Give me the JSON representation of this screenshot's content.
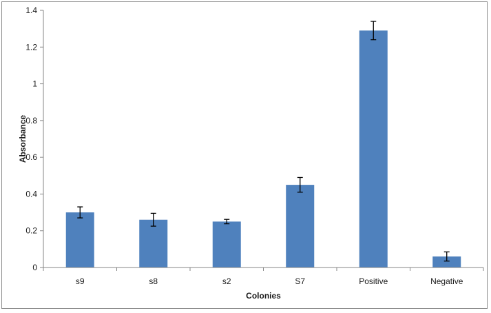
{
  "chart_data": {
    "type": "bar",
    "title": "",
    "xlabel": "Colonies",
    "ylabel": "Absorbance",
    "categories": [
      "s9",
      "s8",
      "s2",
      "S7",
      "Positive",
      "Negative"
    ],
    "values": [
      0.3,
      0.26,
      0.25,
      0.45,
      1.29,
      0.06
    ],
    "error": [
      0.03,
      0.035,
      0.012,
      0.04,
      0.05,
      0.025
    ],
    "ylim": [
      0,
      1.4
    ],
    "yticks": [
      0,
      0.2,
      0.4,
      0.6,
      0.8,
      1,
      1.2,
      1.4
    ],
    "ytick_labels": [
      "0",
      "0.2",
      "0.4",
      "0.6",
      "0.8",
      "1",
      "1.2",
      "1.4"
    ],
    "grid": false,
    "legend": "none",
    "bar_color": "#4f81bd",
    "error_bar_color": "#000000"
  }
}
